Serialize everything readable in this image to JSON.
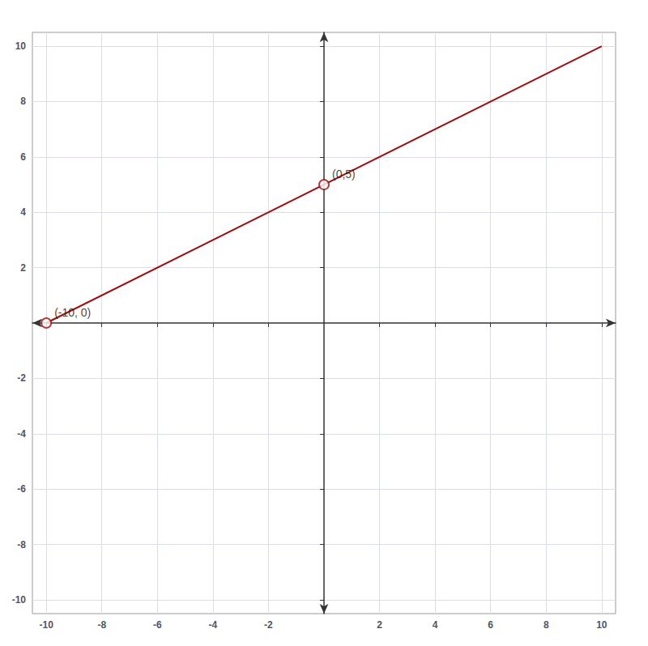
{
  "chart_data": {
    "type": "line",
    "xlim": [
      -10.5,
      10.5
    ],
    "ylim": [
      -10.5,
      10.5
    ],
    "xticks": [
      -10,
      -8,
      -6,
      -4,
      -2,
      2,
      4,
      6,
      8,
      10
    ],
    "yticks": [
      -10,
      -8,
      -6,
      -4,
      -2,
      2,
      4,
      6,
      8,
      10
    ],
    "grid": true,
    "series": [
      {
        "type": "line",
        "color": "#9B1010",
        "x": [
          -10,
          10
        ],
        "values": [
          0,
          10
        ]
      },
      {
        "type": "scatter",
        "color": "#9B1010",
        "marker": "circle",
        "x": [
          -10,
          0
        ],
        "values": [
          0,
          5
        ]
      }
    ],
    "annotations": [
      {
        "text": "(-10, 0)",
        "x": -10,
        "y": 0
      },
      {
        "text": "(0,5)",
        "x": 0,
        "y": 5
      }
    ]
  }
}
